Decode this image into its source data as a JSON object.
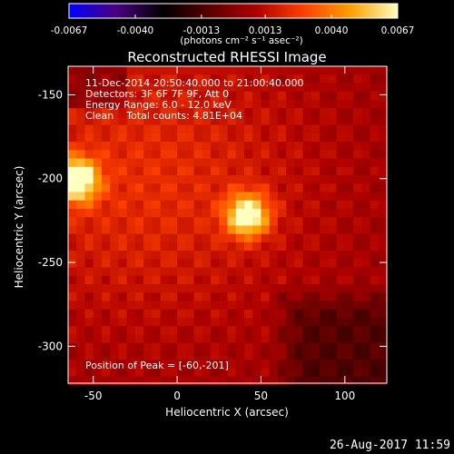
{
  "colorbar": {
    "ticks": [
      "-0.0067",
      "-0.0040",
      "-0.0013",
      "0.0013",
      "0.0040",
      "0.0067"
    ],
    "tick_values": [
      -0.0067,
      -0.004,
      -0.0013,
      0.0013,
      0.004,
      0.0067
    ],
    "range": [
      -0.0067,
      0.0067
    ],
    "unit_label": "(photons cm⁻² s⁻¹ asec⁻²)",
    "colormap": [
      "#0000ff",
      "#4a0080",
      "#000000",
      "#5a0000",
      "#b00000",
      "#ff4000",
      "#ffa000",
      "#ffffc0"
    ]
  },
  "annotations": {
    "time_range": "11-Dec-2014 20:50:40.000 to 21:00:40.000",
    "detectors": "Detectors: 3F 6F 7F 9F, Att 0",
    "energy": "Energy Range: 6.0 - 12.0 keV",
    "clean_counts": "Clean    Total counts: 4.81E+04",
    "peak": "Position of Peak = [-60,-201]"
  },
  "footer": {
    "date": "26-Aug-2017 11:59"
  },
  "chart_data": {
    "type": "heatmap",
    "title": "Reconstructed RHESSI Image",
    "xlabel": "Heliocentric X (arcsec)",
    "ylabel": "Heliocentric Y (arcsec)",
    "xlim": [
      -65,
      125
    ],
    "ylim": [
      -322,
      -133
    ],
    "x_ticks": [
      -50,
      0,
      50,
      100
    ],
    "y_ticks": [
      -150,
      -200,
      -250,
      -300
    ],
    "x_tick_labels": [
      "-50",
      "0",
      "50",
      "100"
    ],
    "y_tick_labels": [
      "-150",
      "-200",
      "-250",
      "-300"
    ],
    "sources": [
      {
        "x": -60,
        "y": -201,
        "value": 0.0067
      },
      {
        "x": 42,
        "y": -222,
        "value": 0.0062
      }
    ],
    "negative_region": {
      "x": [
        55,
        125
      ],
      "y": [
        -322,
        -262
      ],
      "value": -0.0013
    }
  }
}
